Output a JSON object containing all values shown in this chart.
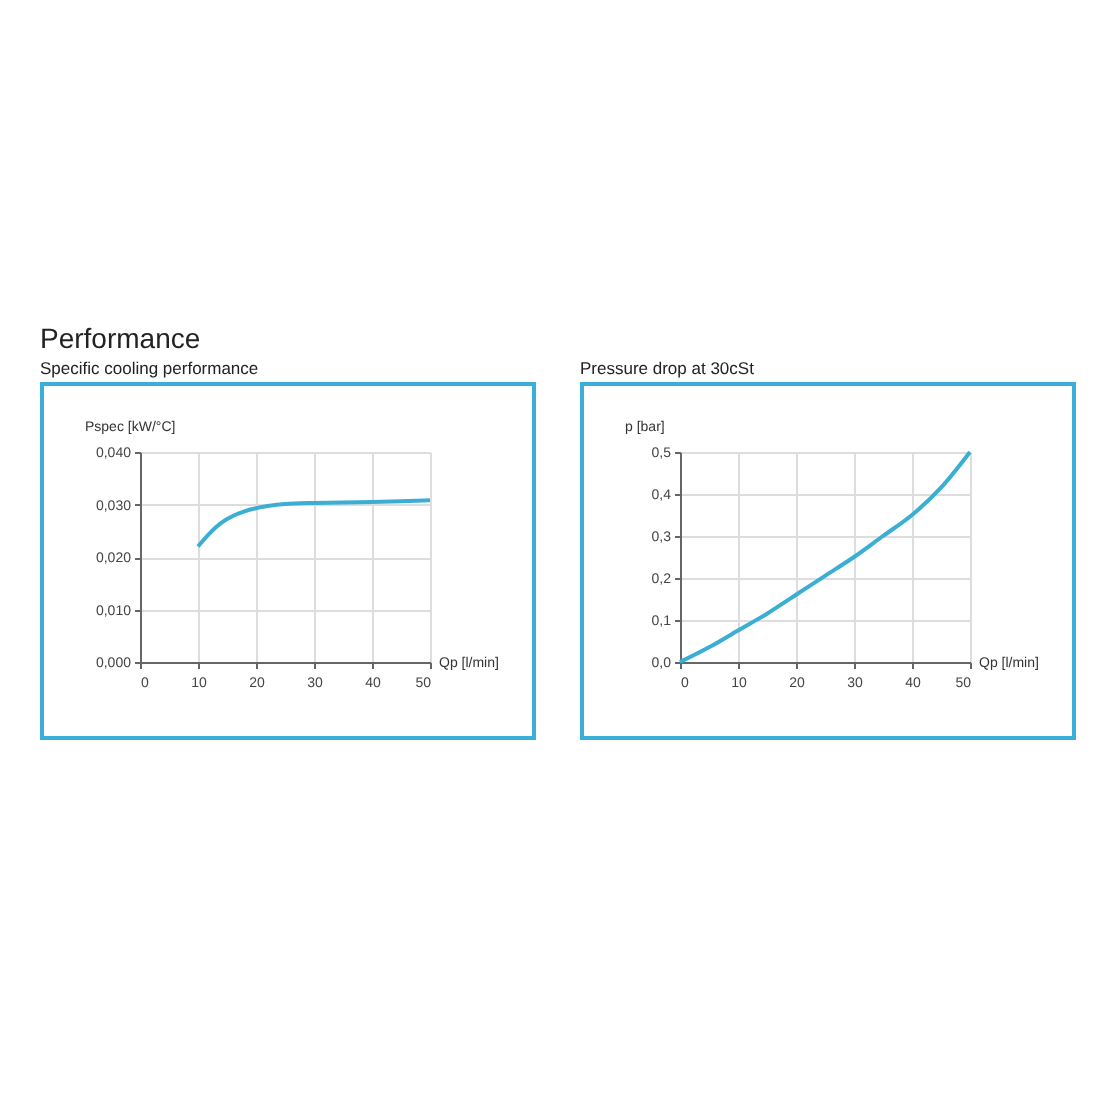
{
  "chart_data": [
    {
      "type": "line",
      "title": "Performance",
      "subtitle": "Specific cooling performance",
      "xlabel": "Qp [l/min]",
      "ylabel": "Pspec [kW/°C]",
      "x": [
        10,
        12,
        14,
        16,
        18,
        20,
        22,
        25,
        30,
        35,
        40,
        45,
        50
      ],
      "series": [
        {
          "color": "#3aaed3",
          "values": [
            0.022,
            0.0245,
            0.0265,
            0.0278,
            0.0287,
            0.0293,
            0.0297,
            0.0301,
            0.0303,
            0.0304,
            0.0305,
            0.0306,
            0.0308
          ]
        }
      ],
      "xlim": [
        0,
        50
      ],
      "xticks": [
        0,
        10,
        20,
        30,
        40,
        50
      ],
      "ylim": [
        0,
        0.04
      ],
      "yticks": [
        {
          "value": 0,
          "label": "0,000"
        },
        {
          "value": 0.01,
          "label": "0,010"
        },
        {
          "value": 0.02,
          "label": "0,020"
        },
        {
          "value": 0.03,
          "label": "0,030"
        },
        {
          "value": 0.04,
          "label": "0,040"
        }
      ],
      "grid": true
    },
    {
      "type": "line",
      "title": "Pressure drop at 30cSt",
      "xlabel": "Qp [l/min]",
      "ylabel": "p [bar]",
      "x": [
        0,
        5,
        10,
        15,
        20,
        25,
        30,
        35,
        40,
        45,
        50
      ],
      "series": [
        {
          "color": "#3aaed3",
          "values": [
            0,
            0.035,
            0.075,
            0.115,
            0.16,
            0.205,
            0.25,
            0.3,
            0.35,
            0.415,
            0.5
          ]
        }
      ],
      "xlim": [
        0,
        50
      ],
      "xticks": [
        0,
        10,
        20,
        30,
        40,
        50
      ],
      "ylim": [
        0,
        0.5
      ],
      "yticks": [
        {
          "value": 0,
          "label": "0,0"
        },
        {
          "value": 0.1,
          "label": "0,1"
        },
        {
          "value": 0.2,
          "label": "0,2"
        },
        {
          "value": 0.3,
          "label": "0,3"
        },
        {
          "value": 0.4,
          "label": "0,4"
        },
        {
          "value": 0.5,
          "label": "0,5"
        }
      ],
      "grid": true
    }
  ]
}
